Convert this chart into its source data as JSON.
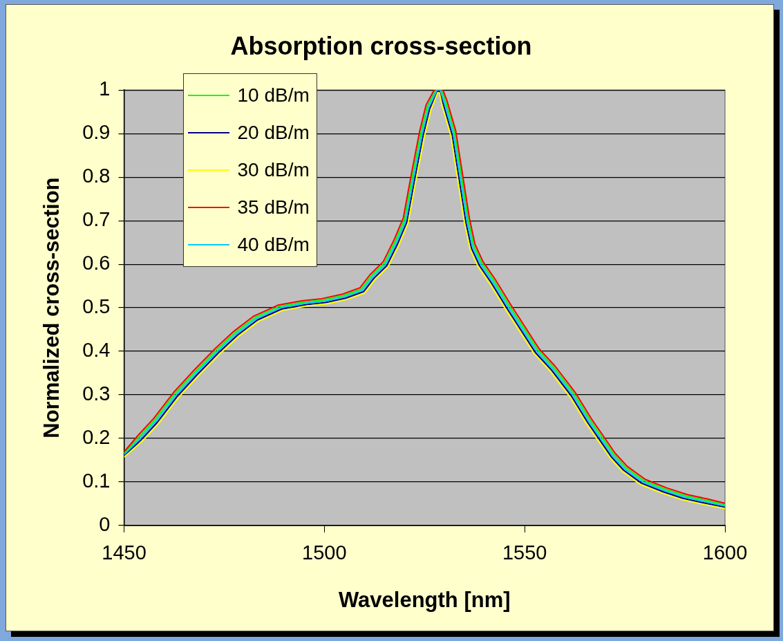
{
  "chart_data": {
    "type": "line",
    "title": "Absorption cross-section",
    "xlabel": "Wavelength [nm]",
    "ylabel": "Normalized cross-section",
    "x": [
      1450,
      1454,
      1458,
      1463,
      1468,
      1473.3,
      1478,
      1483,
      1489,
      1495,
      1500,
      1505,
      1509.5,
      1512,
      1515.3,
      1518,
      1520.3,
      1522.3,
      1524.4,
      1526,
      1528,
      1529,
      1530,
      1532.2,
      1533.9,
      1535.6,
      1537,
      1539,
      1542,
      1546,
      1549.5,
      1553,
      1557,
      1562,
      1566,
      1569,
      1572,
      1575,
      1579.5,
      1585,
      1590,
      1595,
      1600
    ],
    "series": [
      {
        "name": "10 dB/m",
        "color": "#00ff00",
        "x": [
          1450,
          1453.7,
          1457.7,
          1462.7,
          1467.7,
          1473,
          1477.7,
          1482.7,
          1488.7,
          1494.7,
          1499.7,
          1504.7,
          1509.2,
          1511.7,
          1515,
          1517.7,
          1520,
          1522,
          1524.1,
          1525.7,
          1527.7,
          1529.3,
          1530.3,
          1532.5,
          1534.2,
          1535.9,
          1537.3,
          1539.3,
          1542.3,
          1546.3,
          1549.8,
          1553.3,
          1557.3,
          1562.3,
          1566.3,
          1569.3,
          1572.3,
          1575.3,
          1579.8,
          1585.3,
          1590.3,
          1595.3,
          1600
        ],
        "values": [
          0.166,
          0.203,
          0.243,
          0.303,
          0.353,
          0.403,
          0.443,
          0.478,
          0.503,
          0.513,
          0.518,
          0.528,
          0.543,
          0.573,
          0.603,
          0.653,
          0.703,
          0.803,
          0.903,
          0.963,
          1.0,
          1.0,
          0.973,
          0.903,
          0.803,
          0.703,
          0.643,
          0.603,
          0.563,
          0.503,
          0.453,
          0.403,
          0.363,
          0.303,
          0.243,
          0.203,
          0.163,
          0.133,
          0.103,
          0.083,
          0.068,
          0.058,
          0.048
        ]
      },
      {
        "name": "20 dB/m",
        "color": "#000080",
        "x": [
          1450,
          1454.3,
          1458.3,
          1463.3,
          1468.3,
          1473.6,
          1478.3,
          1483.3,
          1489.3,
          1495.3,
          1500.3,
          1505.3,
          1509.8,
          1512.3,
          1515.6,
          1518.3,
          1520.6,
          1522.6,
          1524.7,
          1526.3,
          1528.3,
          1528.7,
          1529.7,
          1531.9,
          1533.6,
          1535.3,
          1536.7,
          1538.7,
          1541.7,
          1545.7,
          1549.2,
          1552.7,
          1556.7,
          1561.7,
          1565.7,
          1568.7,
          1571.7,
          1574.7,
          1579.2,
          1584.7,
          1589.7,
          1594.7,
          1600
        ],
        "values": [
          0.16,
          0.197,
          0.237,
          0.297,
          0.347,
          0.397,
          0.437,
          0.472,
          0.497,
          0.507,
          0.512,
          0.522,
          0.537,
          0.567,
          0.597,
          0.647,
          0.697,
          0.797,
          0.897,
          0.957,
          0.997,
          0.997,
          0.967,
          0.897,
          0.797,
          0.697,
          0.637,
          0.597,
          0.557,
          0.497,
          0.447,
          0.397,
          0.357,
          0.297,
          0.237,
          0.197,
          0.157,
          0.127,
          0.097,
          0.077,
          0.062,
          0.052,
          0.042
        ]
      },
      {
        "name": "30 dB/m",
        "color": "#ffff00",
        "x": [
          1450,
          1454.6,
          1458.6,
          1463.6,
          1468.6,
          1473.9,
          1478.6,
          1483.6,
          1489.6,
          1495.6,
          1500.6,
          1505.6,
          1510.1,
          1512.6,
          1515.9,
          1518.6,
          1520.9,
          1522.9,
          1525,
          1526.6,
          1528.3,
          1528.7,
          1529.4,
          1531.6,
          1533.3,
          1535,
          1536.4,
          1538.4,
          1541.4,
          1545.4,
          1548.9,
          1552.4,
          1556.4,
          1561.4,
          1565.4,
          1568.4,
          1571.4,
          1574.4,
          1578.9,
          1584.4,
          1589.4,
          1594.4,
          1600
        ],
        "values": [
          0.157,
          0.194,
          0.234,
          0.294,
          0.344,
          0.394,
          0.434,
          0.469,
          0.494,
          0.504,
          0.509,
          0.519,
          0.534,
          0.564,
          0.594,
          0.644,
          0.694,
          0.794,
          0.894,
          0.954,
          0.994,
          0.994,
          0.964,
          0.894,
          0.794,
          0.694,
          0.634,
          0.594,
          0.554,
          0.494,
          0.444,
          0.394,
          0.354,
          0.294,
          0.234,
          0.194,
          0.154,
          0.124,
          0.094,
          0.074,
          0.059,
          0.049,
          0.039
        ]
      },
      {
        "name": "35 dB/m",
        "color": "#ff0000",
        "x": [
          1450,
          1453.4,
          1457.4,
          1462.4,
          1467.4,
          1472.7,
          1477.4,
          1482.4,
          1488.4,
          1494.4,
          1499.4,
          1504.4,
          1508.9,
          1511.4,
          1514.7,
          1517.4,
          1519.7,
          1521.7,
          1523.8,
          1525.4,
          1527.4,
          1529.6,
          1530.6,
          1532.8,
          1534.5,
          1536.2,
          1537.6,
          1539.6,
          1542.6,
          1546.6,
          1550.1,
          1553.6,
          1557.6,
          1562.6,
          1566.6,
          1569.6,
          1572.6,
          1575.6,
          1580.1,
          1585.6,
          1590.6,
          1595.6,
          1600
        ],
        "values": [
          0.169,
          0.206,
          0.246,
          0.306,
          0.356,
          0.406,
          0.446,
          0.481,
          0.506,
          0.516,
          0.521,
          0.531,
          0.546,
          0.576,
          0.606,
          0.656,
          0.706,
          0.806,
          0.906,
          0.966,
          1.0,
          1.0,
          0.976,
          0.906,
          0.806,
          0.706,
          0.646,
          0.606,
          0.566,
          0.506,
          0.456,
          0.406,
          0.366,
          0.306,
          0.246,
          0.206,
          0.166,
          0.136,
          0.106,
          0.086,
          0.071,
          0.061,
          0.051
        ]
      },
      {
        "name": "40 dB/m",
        "color": "#00ccff",
        "values": [
          0.163,
          0.2,
          0.24,
          0.3,
          0.35,
          0.4,
          0.44,
          0.475,
          0.5,
          0.51,
          0.515,
          0.525,
          0.54,
          0.57,
          0.6,
          0.65,
          0.7,
          0.8,
          0.9,
          0.96,
          1.0,
          1.0,
          0.97,
          0.9,
          0.8,
          0.7,
          0.64,
          0.6,
          0.56,
          0.5,
          0.45,
          0.4,
          0.36,
          0.3,
          0.24,
          0.2,
          0.16,
          0.13,
          0.1,
          0.08,
          0.065,
          0.055,
          0.045
        ]
      }
    ],
    "xlim": [
      1450,
      1600
    ],
    "xticks": [
      1450,
      1500,
      1550,
      1600
    ],
    "ylim": [
      0,
      1
    ],
    "yticks": [
      0,
      0.1,
      0.2,
      0.3,
      0.4,
      0.5,
      0.6,
      0.7,
      0.8,
      0.9,
      1
    ],
    "grid": "y",
    "legend": "top left",
    "marker": "none",
    "line_style": "solid"
  }
}
